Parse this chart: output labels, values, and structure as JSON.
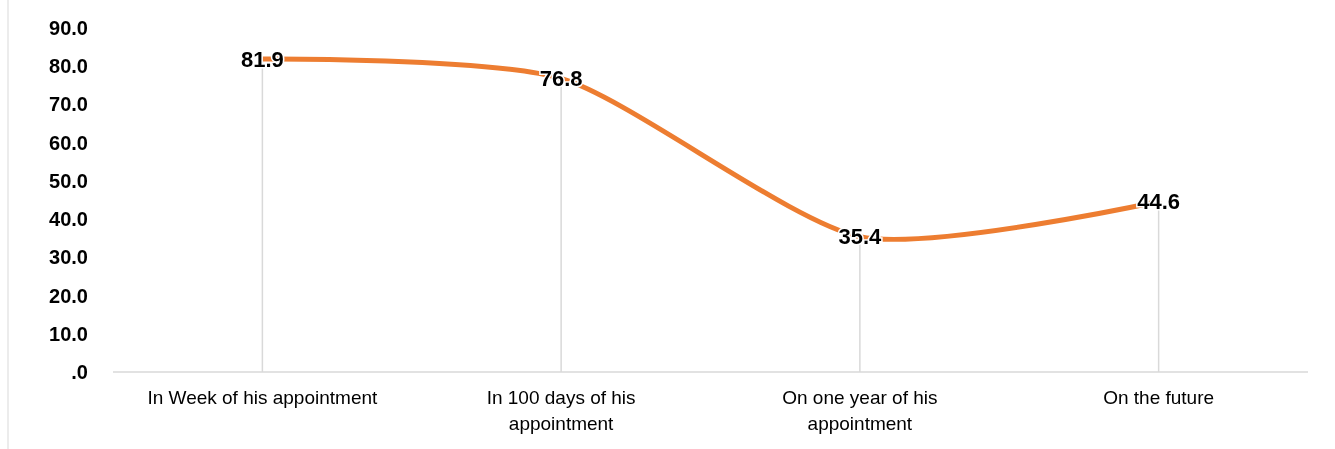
{
  "chart_data": {
    "type": "line",
    "categories": [
      "In Week of his appointment",
      "In 100 days of his appointment",
      "On one year of his appointment",
      "On the future"
    ],
    "series": [
      {
        "color": "#ed7d31",
        "values": [
          81.9,
          76.8,
          35.4,
          44.6
        ]
      }
    ],
    "ylim": [
      0,
      90
    ],
    "yticks": [
      {
        "value": 0,
        "label": ".0"
      },
      {
        "value": 10,
        "label": "10.0"
      },
      {
        "value": 20,
        "label": "20.0"
      },
      {
        "value": 30,
        "label": "30.0"
      },
      {
        "value": 40,
        "label": "40.0"
      },
      {
        "value": 50,
        "label": "50.0"
      },
      {
        "value": 60,
        "label": "60.0"
      },
      {
        "value": 70,
        "label": "70.0"
      },
      {
        "value": 80,
        "label": "80.0"
      },
      {
        "value": 90,
        "label": "90.0"
      }
    ],
    "data_labels": true,
    "grid": "x",
    "marker": "none",
    "line_style": "solid"
  }
}
